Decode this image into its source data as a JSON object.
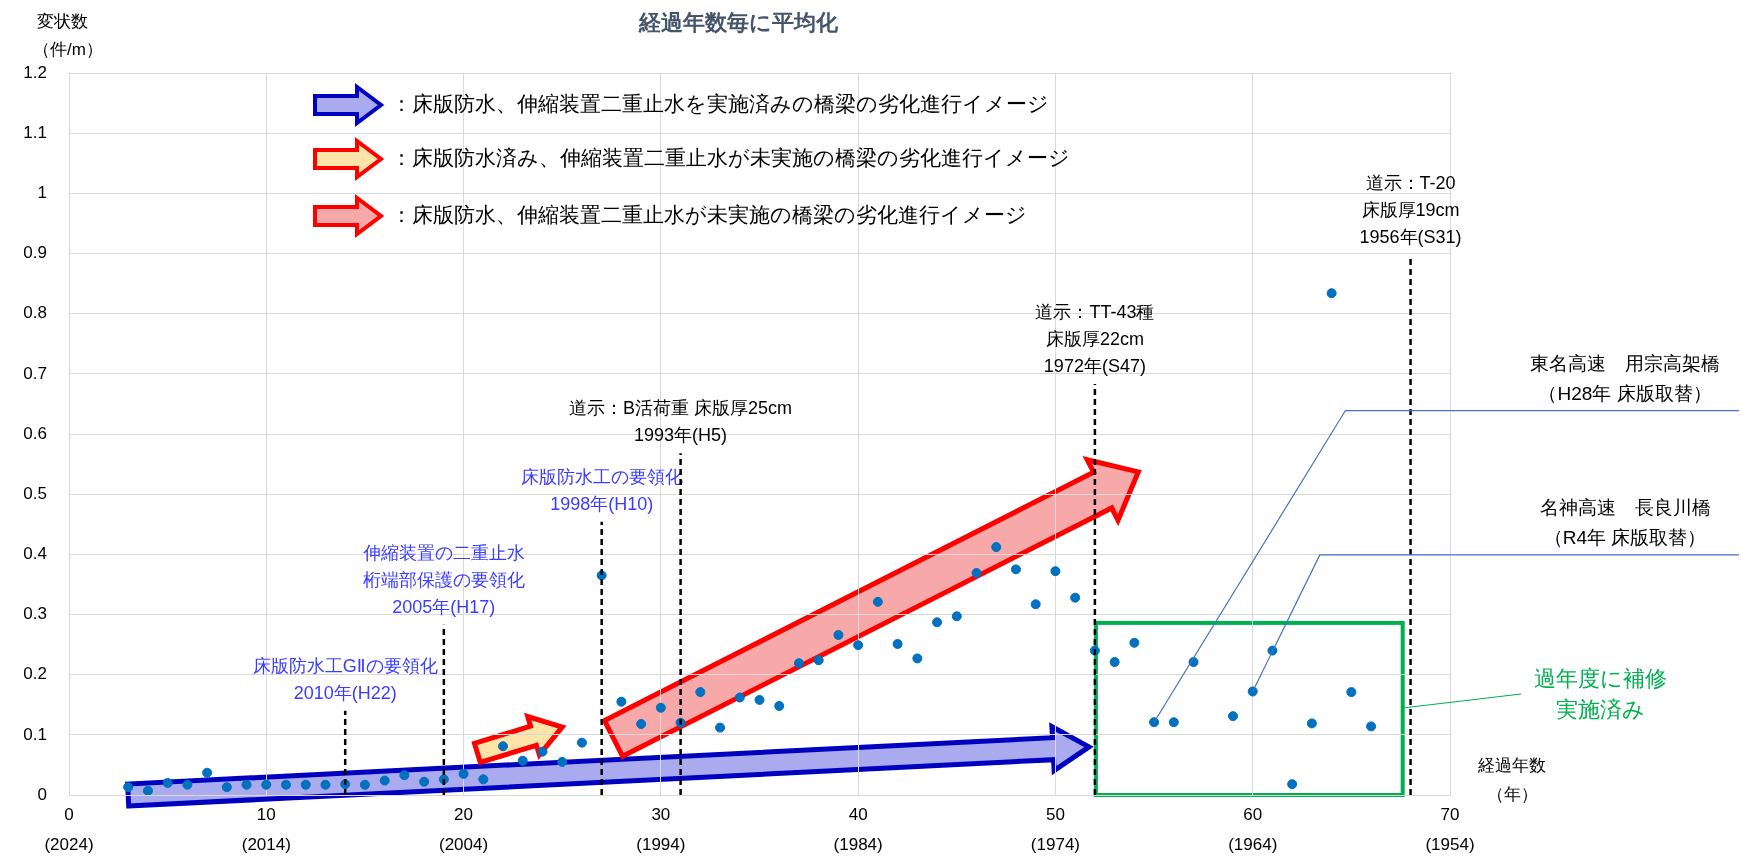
{
  "chart_data": {
    "type": "scatter",
    "title": "経過年数毎に平均化",
    "ylabel": "変状数（件/m）",
    "xlabel": "経過年数（年）",
    "x": [
      3,
      4,
      5,
      6,
      7,
      8,
      9,
      10,
      11,
      12,
      13,
      14,
      15,
      16,
      17,
      18,
      19,
      20,
      21,
      22,
      23,
      24,
      25,
      26,
      27,
      28,
      29,
      30,
      31,
      32,
      33,
      34,
      35,
      36,
      37,
      38,
      39,
      40,
      41,
      42,
      43,
      44,
      45,
      46,
      47,
      48,
      49,
      50,
      51,
      52,
      53,
      54,
      55,
      56,
      57,
      59,
      60,
      61,
      62,
      63,
      64,
      65,
      66
    ],
    "series": [
      {
        "color": "#0070c0",
        "values": [
          0.013,
          0.007,
          0.02,
          0.017,
          0.037,
          0.013,
          0.017,
          0.017,
          0.017,
          0.017,
          0.017,
          0.018,
          0.017,
          0.024,
          0.033,
          0.022,
          0.026,
          0.035,
          0.026,
          0.081,
          0.057,
          0.072,
          0.055,
          0.087,
          0.365,
          0.155,
          0.118,
          0.145,
          0.12,
          0.171,
          0.112,
          0.162,
          0.158,
          0.148,
          0.219,
          0.224,
          0.266,
          0.249,
          0.321,
          0.251,
          0.227,
          0.287,
          0.297,
          0.369,
          0.412,
          0.375,
          0.317,
          0.372,
          0.328,
          0.24,
          0.221,
          0.253,
          0.121,
          0.121,
          0.221,
          0.131,
          0.172,
          0.24,
          0.018,
          0.119,
          0.834,
          0.171,
          0.114
        ]
      }
    ],
    "marker": "circle",
    "grid": true,
    "xlim": [
      0,
      70
    ],
    "xticks": [
      0,
      10,
      20,
      30,
      40,
      50,
      60,
      70
    ],
    "x2lim": [
      2024,
      1954
    ],
    "x2ticks": [
      {
        "value": 2024,
        "label": "(2024)"
      },
      {
        "value": 2014,
        "label": "(2014)"
      },
      {
        "value": 2004,
        "label": "(2004)"
      },
      {
        "value": 1994,
        "label": "(1994)"
      },
      {
        "value": 1984,
        "label": "(1984)"
      },
      {
        "value": 1974,
        "label": "(1974)"
      },
      {
        "value": 1964,
        "label": "(1964)"
      },
      {
        "value": 1954,
        "label": "(1954)"
      }
    ],
    "ylim": [
      0,
      1.2
    ],
    "yticks": [
      0,
      0.1,
      0.2,
      0.3,
      0.4,
      0.5,
      0.6,
      0.7,
      0.8,
      0.9,
      1,
      1.1,
      1.2
    ],
    "ref_lines": [
      {
        "axis": "x",
        "value": 14,
        "label": "床版防水工GⅡの要領化2010年(H22)",
        "line_style": "dashed"
      },
      {
        "axis": "x",
        "value": 19,
        "label": "伸縮装置の二重止水桁端部保護の要領化2005年(H17)",
        "line_style": "dashed"
      },
      {
        "axis": "x",
        "value": 27,
        "label": "床版防水工の要領化1998年(H10)",
        "line_style": "dashed"
      },
      {
        "axis": "x",
        "value": 31,
        "label": "道示：B活荷重 床版厚25cm\n1993年(H5)",
        "line_style": "dashed"
      },
      {
        "axis": "x",
        "value": 52,
        "label": "道示：TT-43種床版厚22cm\n1972年(S47)",
        "line_style": "dashed"
      },
      {
        "axis": "x",
        "value": 68,
        "label": "道示：T-20\n床版厚19cm\n1956年(S31)",
        "line_style": "dashed"
      }
    ],
    "annotations": [
      "：床版防水、伸縮装置二重止水を実施済みの橋梁の劣化進行イメージ",
      "：床版防水済み、伸縮装置二重止水が未実施の橋梁の劣化進行イメージ",
      "：床版防水、伸縮装置二重止水が未実施の橋梁の劣化進行イメージ",
      {
        "text": "東名高速　用宗高架橋（H28年 床版取替）",
        "x": 55,
        "y": 0.121
      },
      {
        "text": "名神高速　長良川橋（R4年 床版取替）",
        "x": 60,
        "y": 0.172
      },
      "過年度に補修実施済み"
    ]
  }
}
